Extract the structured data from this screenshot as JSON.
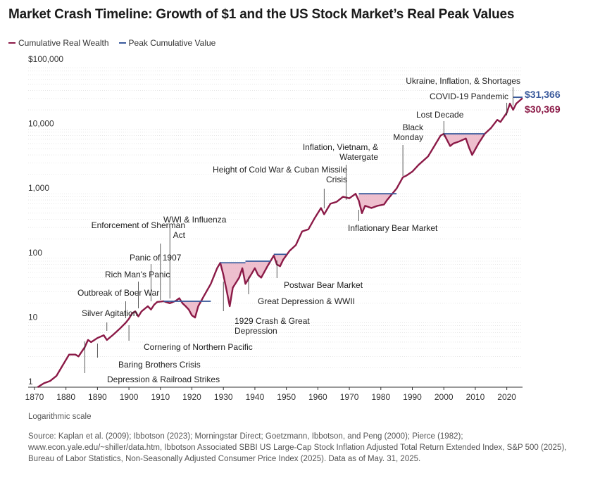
{
  "chart_data": {
    "type": "line",
    "title": "Market Crash Timeline: Growth of $1 and the US Stock Market’s Real Peak Values",
    "xlabel": "",
    "ylabel": "",
    "scale": "log",
    "xlim": [
      1870,
      2025
    ],
    "ylim": [
      1,
      100000
    ],
    "grid": true,
    "legend_position": "top-left",
    "x_ticks": [
      "1870",
      "1880",
      "1890",
      "1900",
      "1910",
      "1920",
      "1930",
      "1940",
      "1950",
      "1960",
      "1970",
      "1980",
      "1990",
      "2000",
      "2010",
      "2020"
    ],
    "y_ticks": [
      {
        "value": 1,
        "label": "1"
      },
      {
        "value": 10,
        "label": "10"
      },
      {
        "value": 100,
        "label": "100"
      },
      {
        "value": 1000,
        "label": "1,000"
      },
      {
        "value": 10000,
        "label": "10,000"
      },
      {
        "value": 100000,
        "label": "$100,000"
      }
    ],
    "series": [
      {
        "name": "Cumulative Real Wealth",
        "color": "#8b1a47",
        "x": [
          1871,
          1873,
          1875,
          1877,
          1879,
          1881,
          1883,
          1884,
          1886,
          1887,
          1888,
          1890,
          1892,
          1893,
          1895,
          1897,
          1899,
          1900,
          1901,
          1902,
          1903,
          1904,
          1906,
          1907,
          1908,
          1909,
          1911,
          1913,
          1915,
          1916,
          1917,
          1918,
          1919,
          1920,
          1921,
          1922,
          1924,
          1926,
          1928,
          1929,
          1930,
          1931,
          1932,
          1933,
          1935,
          1936,
          1937,
          1938,
          1940,
          1941,
          1942,
          1944,
          1946,
          1947,
          1948,
          1949,
          1951,
          1953,
          1955,
          1957,
          1959,
          1961,
          1962,
          1964,
          1966,
          1968,
          1970,
          1972,
          1973,
          1974,
          1975,
          1977,
          1979,
          1981,
          1982,
          1985,
          1987,
          1988,
          1990,
          1992,
          1995,
          1997,
          1999,
          2000,
          2002,
          2003,
          2005,
          2007,
          2008,
          2009,
          2011,
          2013,
          2015,
          2017,
          2018,
          2020,
          2021,
          2022,
          2023,
          2025
        ],
        "values": [
          1.0,
          1.15,
          1.25,
          1.5,
          2.2,
          3.2,
          3.2,
          3.0,
          4.2,
          5.4,
          5.0,
          5.8,
          6.4,
          5.4,
          6.5,
          8.0,
          10.0,
          11.5,
          14.0,
          15.0,
          12.5,
          15.0,
          18.0,
          16.0,
          19.0,
          21.0,
          21.5,
          20.0,
          22.0,
          24.0,
          20.0,
          18.0,
          16.0,
          13.0,
          12.0,
          18.0,
          27.0,
          40.0,
          70.0,
          85.0,
          55.0,
          32.0,
          18.0,
          35.0,
          50.0,
          70.0,
          40.0,
          48.0,
          70.0,
          55.0,
          50.0,
          75.0,
          110.0,
          80.0,
          75.0,
          95.0,
          130.0,
          160.0,
          260.0,
          280.0,
          420.0,
          600.0,
          480.0,
          700.0,
          750.0,
          900.0,
          850.0,
          1000.0,
          780.0,
          500.0,
          650.0,
          600.0,
          650.0,
          680.0,
          800.0,
          1200.0,
          1800.0,
          1900.0,
          2200.0,
          2800.0,
          3800.0,
          5500.0,
          8000.0,
          8500.0,
          5500.0,
          6000.0,
          6500.0,
          7200.0,
          5200.0,
          4000.0,
          6000.0,
          8500.0,
          10500.0,
          14000.0,
          13000.0,
          18000.0,
          25000.0,
          20000.0,
          25000.0,
          30369.0
        ]
      },
      {
        "name": "Peak Cumulative Value",
        "color": "#3a5a9c",
        "segments": [
          {
            "from": 1911,
            "to": 1926,
            "value": 21.5
          },
          {
            "from": 1929,
            "to": 1937,
            "value": 85.0
          },
          {
            "from": 1937,
            "to": 1945,
            "value": 90.0
          },
          {
            "from": 1946,
            "to": 1950,
            "value": 115.0
          },
          {
            "from": 1973,
            "to": 1985,
            "value": 1000.0
          },
          {
            "from": 2000,
            "to": 2013,
            "value": 8500.0
          }
        ]
      }
    ],
    "end_labels": [
      {
        "text": "$31,366",
        "value": 31366,
        "color": "#3a5a9c"
      },
      {
        "text": "$30,369",
        "value": 30369,
        "color": "#8b1a47"
      }
    ],
    "annotations": [
      {
        "text": "Depression & Railroad Strikes",
        "year": 1886
      },
      {
        "text": "Baring Brothers Crisis",
        "year": 1890
      },
      {
        "text": "Cornering of Northern Pacific",
        "year": 1900
      },
      {
        "text": "Silver Agitation",
        "year": 1893
      },
      {
        "text": "Outbreak of Boer War",
        "year": 1899
      },
      {
        "text": "Rich Man's Panic",
        "year": 1903
      },
      {
        "text": "Panic of 1907",
        "year": 1907
      },
      {
        "text": "Enforcement of Sherman Act",
        "year": 1910
      },
      {
        "text": "WWI & Influenza",
        "year": 1913
      },
      {
        "text": "1929 Crash & Great Depression",
        "year": 1930
      },
      {
        "text": "Great Depression & WWII",
        "year": 1938
      },
      {
        "text": "Postwar Bear Market",
        "year": 1947
      },
      {
        "text": "Height of Cold War & Cuban Missile Crisis",
        "year": 1962
      },
      {
        "text": "Inflationary Bear Market",
        "year": 1973
      },
      {
        "text": "Inflation, Vietnam, & Watergate",
        "year": 1969
      },
      {
        "text": "Black Monday",
        "year": 1987
      },
      {
        "text": "Lost Decade",
        "year": 2000
      },
      {
        "text": "COVID-19 Pandemic",
        "year": 2020
      },
      {
        "text": "Ukraine, Inflation, & Shortages",
        "year": 2022
      }
    ],
    "scale_note": "Logarithmic scale"
  },
  "source": "Source: Kaplan et al. (2009); Ibbotson (2023); Morningstar Direct; Goetzmann, Ibbotson, and Peng (2000); Pierce (1982); www.econ.yale.edu/~shiller/data.htm, Ibbotson Associated SBBI US Large-Cap Stock Inflation Adjusted Total Return Extended Index, S&P 500 (2025), Bureau of Labor Statistics, Non-Seasonally Adjusted Consumer Price Index (2025). Data as of May. 31, 2025."
}
